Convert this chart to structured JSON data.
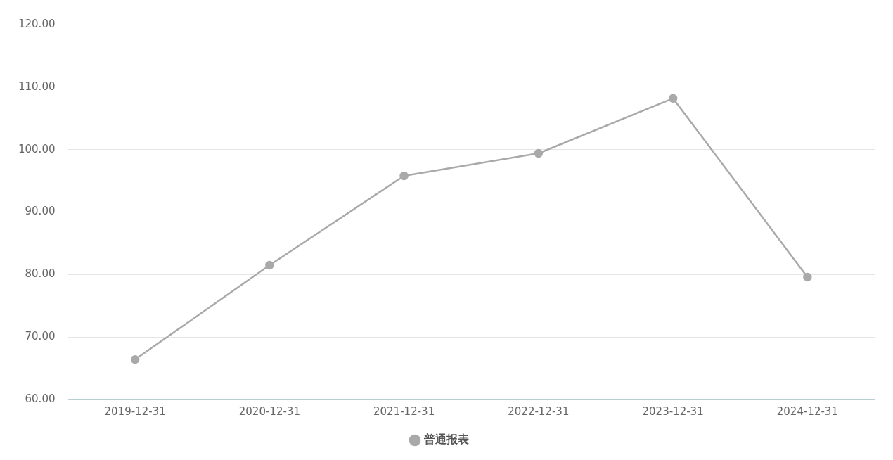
{
  "chart_data": {
    "type": "line",
    "categories": [
      "2019-12-31",
      "2020-12-31",
      "2021-12-31",
      "2022-12-31",
      "2023-12-31",
      "2024-12-31"
    ],
    "series": [
      {
        "name": "普通报表",
        "color": "#a9a9a9",
        "values": [
          66.4,
          81.5,
          95.8,
          99.4,
          108.2,
          79.6
        ]
      }
    ],
    "ylim": [
      60,
      120
    ],
    "yticks": [
      {
        "value": 60,
        "label": "60.00"
      },
      {
        "value": 70,
        "label": "70.00"
      },
      {
        "value": 80,
        "label": "80.00"
      },
      {
        "value": 90,
        "label": "90.00"
      },
      {
        "value": 100,
        "label": "100.00"
      },
      {
        "value": 110,
        "label": "110.00"
      },
      {
        "value": 120,
        "label": "120.00"
      }
    ],
    "grid": "y",
    "legend": "bottom",
    "marker": "circle",
    "line_style": "solid"
  }
}
